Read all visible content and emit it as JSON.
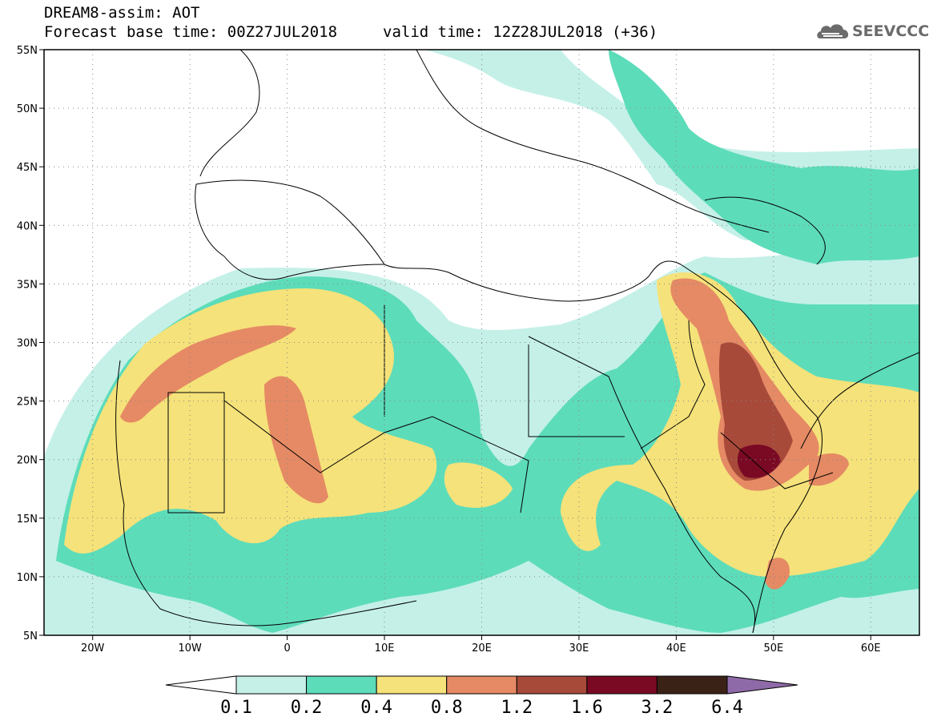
{
  "header": {
    "title": "DREAM8-assim: AOT",
    "base_time": "Forecast base time: 00Z27JUL2018",
    "valid_time": "valid time: 12Z28JUL2018 (+36)"
  },
  "logo": {
    "text": "SEEVCCC",
    "icon": "cloud-logo-icon"
  },
  "map": {
    "lon_range": [
      -25,
      65
    ],
    "lat_range": [
      5,
      55
    ],
    "lon_ticks": [
      {
        "value": -20,
        "label": "20W"
      },
      {
        "value": -10,
        "label": "10W"
      },
      {
        "value": 0,
        "label": "0"
      },
      {
        "value": 10,
        "label": "10E"
      },
      {
        "value": 20,
        "label": "20E"
      },
      {
        "value": 30,
        "label": "30E"
      },
      {
        "value": 40,
        "label": "40E"
      },
      {
        "value": 50,
        "label": "50E"
      },
      {
        "value": 60,
        "label": "60E"
      }
    ],
    "lat_ticks": [
      {
        "value": 55,
        "label": "55N"
      },
      {
        "value": 50,
        "label": "50N"
      },
      {
        "value": 45,
        "label": "45N"
      },
      {
        "value": 40,
        "label": "40N"
      },
      {
        "value": 35,
        "label": "35N"
      },
      {
        "value": 30,
        "label": "30N"
      },
      {
        "value": 25,
        "label": "25N"
      },
      {
        "value": 20,
        "label": "20N"
      },
      {
        "value": 15,
        "label": "15N"
      },
      {
        "value": 10,
        "label": "10N"
      },
      {
        "value": 5,
        "label": "5N"
      }
    ]
  },
  "colorbar": {
    "labels": [
      "0.1",
      "0.2",
      "0.4",
      "0.8",
      "1.2",
      "1.6",
      "3.2",
      "6.4"
    ],
    "colors": [
      "#ffffff",
      "#c4f0e8",
      "#5ddcba",
      "#f5e27a",
      "#e58a64",
      "#a84a3a",
      "#7a0a24",
      "#3a2316",
      "#8f6aa8"
    ]
  }
}
